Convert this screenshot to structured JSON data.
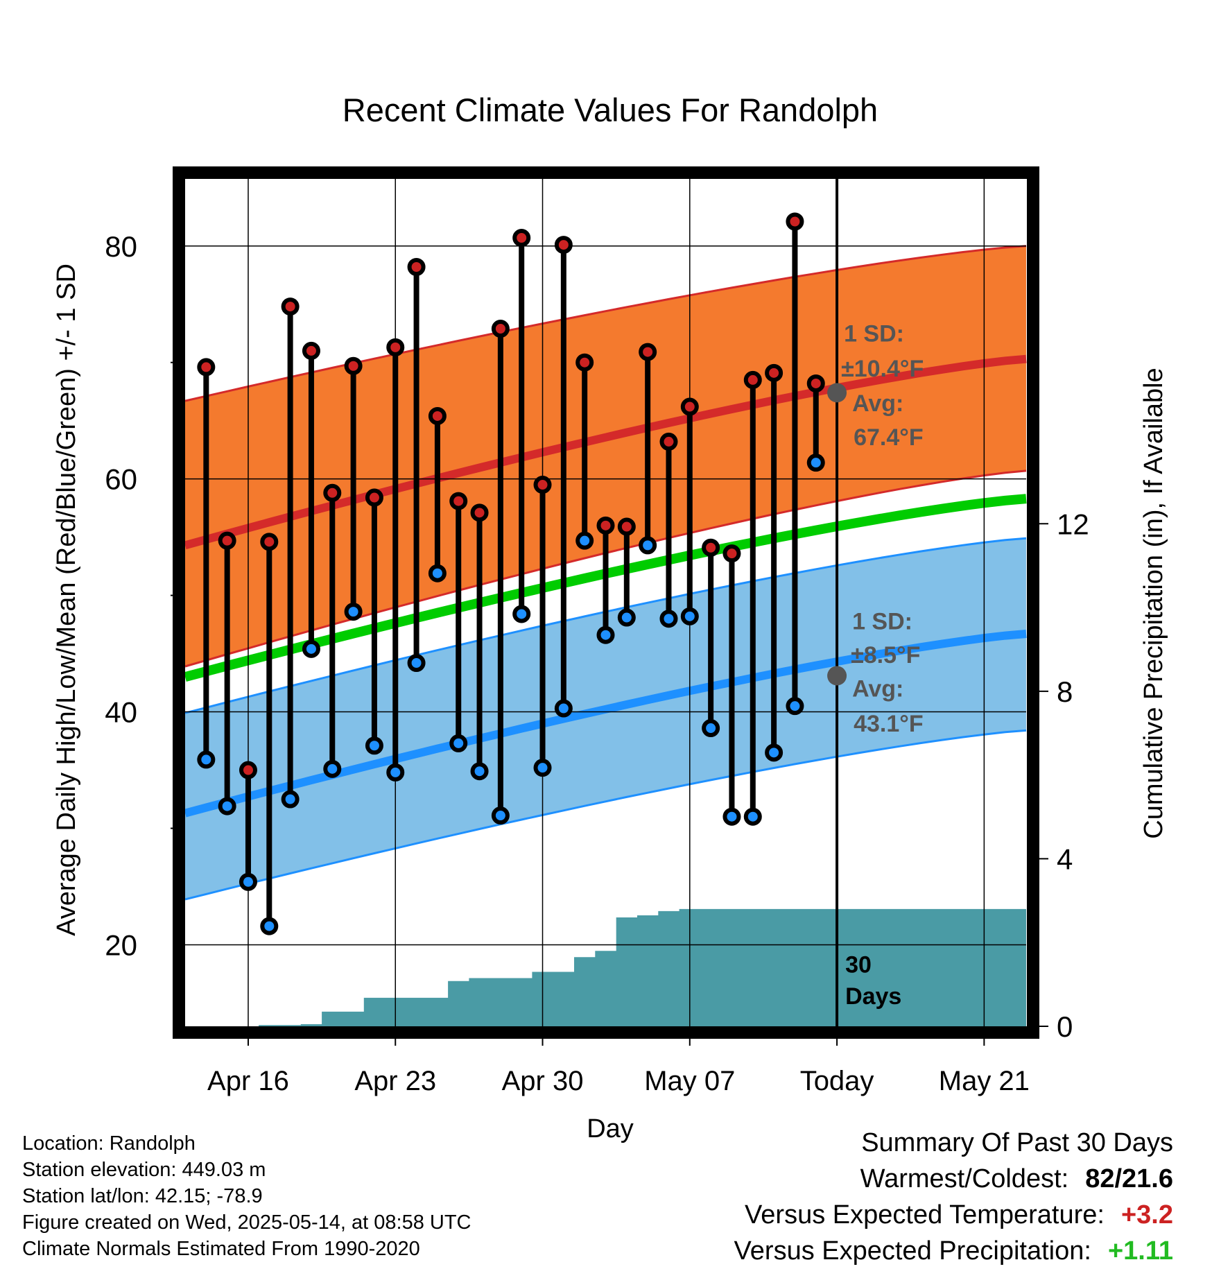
{
  "chart_data": {
    "type": "line",
    "title": "Recent Climate Values For Randolph",
    "xlabel": "Day",
    "ylabel": "Average Daily High/Low/Mean (Red/Blue/Green) +/- 1 SD",
    "ylabel_right": "Cumulative Precipitation (in), If Available",
    "x_ticks": [
      "Apr 16",
      "Apr 23",
      "Apr 30",
      "May 07",
      "Today",
      "May 21"
    ],
    "ylim": [
      13,
      86
    ],
    "y_ticks": [
      20,
      40,
      60,
      80
    ],
    "y2lim": [
      0,
      20.3
    ],
    "y2_ticks": [
      0,
      4,
      8,
      12
    ],
    "today_label": [
      "30",
      "Days"
    ],
    "dates": [
      "Apr 14",
      "Apr 15",
      "Apr 16",
      "Apr 17",
      "Apr 18",
      "Apr 19",
      "Apr 20",
      "Apr 21",
      "Apr 22",
      "Apr 23",
      "Apr 24",
      "Apr 25",
      "Apr 26",
      "Apr 27",
      "Apr 28",
      "Apr 29",
      "Apr 30",
      "May 01",
      "May 02",
      "May 03",
      "May 04",
      "May 05",
      "May 06",
      "May 07",
      "May 08",
      "May 09",
      "May 10",
      "May 11",
      "May 12",
      "May 13"
    ],
    "series": [
      {
        "name": "High",
        "color": "#cc2222",
        "values": [
          69.6,
          54.7,
          35.0,
          54.6,
          74.8,
          71.0,
          58.8,
          69.7,
          58.4,
          71.3,
          78.2,
          65.4,
          58.1,
          57.1,
          72.9,
          80.7,
          59.5,
          80.1,
          70.0,
          56.0,
          55.9,
          70.9,
          63.2,
          66.2,
          54.1,
          53.6,
          68.5,
          69.1,
          82.1,
          68.2
        ]
      },
      {
        "name": "Low",
        "color": "#1e90ff",
        "values": [
          35.9,
          31.9,
          25.4,
          21.6,
          32.5,
          45.4,
          35.1,
          48.6,
          37.1,
          34.8,
          44.2,
          51.9,
          37.3,
          34.9,
          31.1,
          48.4,
          35.2,
          40.3,
          54.7,
          46.6,
          48.1,
          54.3,
          48.0,
          48.2,
          38.6,
          31.0,
          31.0,
          36.5,
          40.5,
          61.4
        ]
      }
    ],
    "normals": {
      "days_span_start": "Apr 13",
      "days_span_end": "May 23",
      "high_avg": [
        54.3,
        70.3
      ],
      "high_sd_lower": [
        43.9,
        60.7
      ],
      "high_sd_upper": [
        66.7,
        80.0
      ],
      "low_avg": [
        31.3,
        46.7
      ],
      "low_sd_lower": [
        23.9,
        38.4
      ],
      "low_sd_upper": [
        39.9,
        54.9
      ],
      "mean": [
        43.0,
        58.3
      ],
      "colors": {
        "high_band": "#f47a2e",
        "high_line": "#d42a2a",
        "low_band": "#82c0e8",
        "low_line": "#1e90ff",
        "mean_line": "#00cc00",
        "precip": "#4a9ba5"
      }
    },
    "annotations": {
      "high_sd_line1": "1 SD:",
      "high_sd_line2": "±10.4°F",
      "high_avg_line1": "Avg:",
      "high_avg_line2": "67.4°F",
      "high_avg_value": 67.4,
      "low_sd_line1": "1 SD:",
      "low_sd_line2": "±8.5°F",
      "low_avg_line1": "Avg:",
      "low_avg_line2": "43.1°F",
      "low_avg_value": 43.1
    },
    "precipitation": {
      "cumulative": [
        0.0,
        0.0,
        0.0,
        0.03,
        0.03,
        0.05,
        0.35,
        0.35,
        0.68,
        0.68,
        0.68,
        0.68,
        1.08,
        1.15,
        1.15,
        1.15,
        1.3,
        1.3,
        1.65,
        1.8,
        2.6,
        2.65,
        2.75,
        2.8,
        2.8,
        2.8,
        2.8,
        2.8,
        2.8,
        2.8,
        2.8
      ],
      "final": 2.8
    }
  },
  "info": {
    "location": "Location: Randolph",
    "elevation": "Station elevation: 449.03 m",
    "latlon": "Station lat/lon: 42.15; -78.9",
    "created": "Figure created on Wed, 2025-05-14, at 08:58 UTC",
    "normals_note": "Climate Normals Estimated From 1990-2020"
  },
  "summary": {
    "title": "Summary Of Past 30 Days",
    "warmest_label": "Warmest/Coldest:",
    "warmest_value": "82/21.6",
    "temp_label": "Versus Expected Temperature:",
    "temp_value": "+3.2",
    "temp_color": "#cc2222",
    "precip_label": "Versus Expected Precipitation:",
    "precip_value": "+1.11",
    "precip_color": "#22bb22"
  }
}
